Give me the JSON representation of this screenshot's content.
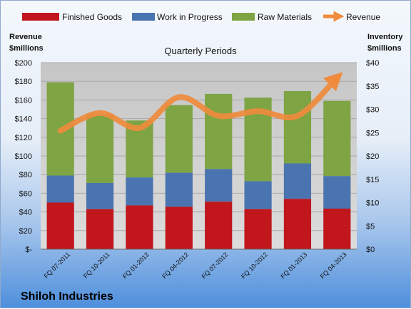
{
  "chart_data": {
    "type": "bar",
    "stacked": true,
    "subtitle": "Quarterly Periods",
    "footer_title": "Shiloh Industries",
    "left_axis": {
      "title_line1": "Revenue",
      "title_line2": "$millions",
      "range": [
        0,
        200
      ],
      "step": 20,
      "ticks": [
        "$-",
        "$20",
        "$40",
        "$60",
        "$80",
        "$100",
        "$120",
        "$140",
        "$160",
        "$180",
        "$200"
      ]
    },
    "right_axis": {
      "title_line1": "Inventory",
      "title_line2": "$millions",
      "range": [
        0,
        40
      ],
      "step": 5,
      "ticks": [
        "$0",
        "$5",
        "$10",
        "$15",
        "$20",
        "$25",
        "$30",
        "$35",
        "$40"
      ]
    },
    "categories": [
      "FQ 07-2011",
      "FQ 10-2011",
      "FQ 01-2012",
      "FQ 04-2012",
      "FQ 07-2012",
      "FQ 10-2012",
      "FQ 01-2013",
      "FQ 04-2013"
    ],
    "series": [
      {
        "name": "Finished Goods",
        "axis": "right",
        "color": "#c0161c",
        "values": [
          10.0,
          8.6,
          9.4,
          9.1,
          10.2,
          8.6,
          10.8,
          8.7
        ]
      },
      {
        "name": "Work in Progress",
        "axis": "right",
        "color": "#4a74b0",
        "values": [
          5.8,
          5.6,
          6.0,
          7.3,
          7.0,
          6.0,
          7.6,
          7.0
        ]
      },
      {
        "name": "Raw Materials",
        "axis": "right",
        "color": "#7ea443",
        "values": [
          20.0,
          14.7,
          12.2,
          14.5,
          16.1,
          17.9,
          15.5,
          16.1
        ]
      },
      {
        "name": "Revenue",
        "axis": "left",
        "type": "line",
        "color": "#ef8b3d",
        "values": [
          127,
          146,
          130,
          163,
          143,
          148,
          143,
          184
        ]
      }
    ],
    "grid": true,
    "legend_position": "top"
  }
}
